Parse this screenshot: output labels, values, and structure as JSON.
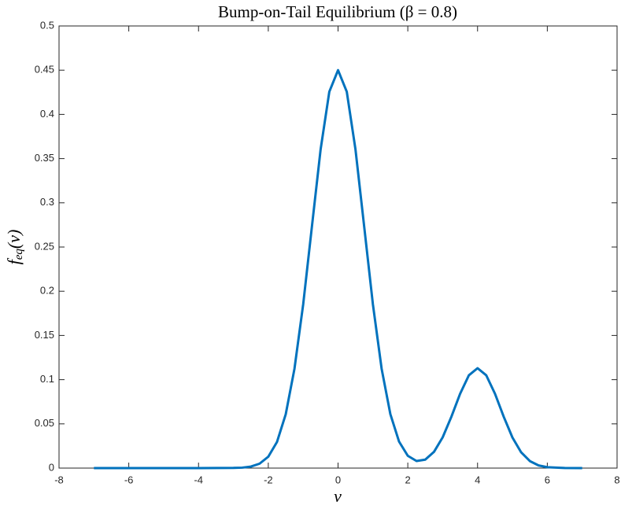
{
  "chart_data": {
    "type": "line",
    "title": "Bump-on-Tail Equilibrium (β = 0.8)",
    "xlabel": "v",
    "ylabel": {
      "base": "f",
      "sub": "eq",
      "arg": "(v)"
    },
    "x": [
      -7,
      -6,
      -5,
      -4,
      -3,
      -2.75,
      -2.5,
      -2.25,
      -2,
      -1.75,
      -1.5,
      -1.25,
      -1,
      -0.75,
      -0.5,
      -0.25,
      0,
      0.25,
      0.5,
      0.75,
      1,
      1.25,
      1.5,
      1.75,
      2,
      2.25,
      2.5,
      2.75,
      3,
      3.25,
      3.5,
      3.75,
      4,
      4.25,
      4.5,
      4.75,
      5,
      5.25,
      5.5,
      5.75,
      6,
      6.5,
      7
    ],
    "series": [
      {
        "color": "#0072bd",
        "values": [
          0,
          0,
          0,
          0,
          0.0002,
          0.0005,
          0.0017,
          0.005,
          0.0129,
          0.0296,
          0.0609,
          0.1122,
          0.185,
          0.2729,
          0.3603,
          0.4257,
          0.45,
          0.4257,
          0.3603,
          0.2729,
          0.185,
          0.1122,
          0.061,
          0.0299,
          0.0139,
          0.008,
          0.0096,
          0.0183,
          0.0348,
          0.0581,
          0.0841,
          0.1049,
          0.113,
          0.1049,
          0.0841,
          0.0581,
          0.0346,
          0.0178,
          0.0079,
          0.003,
          0.001,
          0.0001,
          0
        ]
      }
    ],
    "xlim": [
      -8,
      8
    ],
    "xticks": [
      -8,
      -6,
      -4,
      -2,
      0,
      2,
      4,
      6,
      8
    ],
    "ylim": [
      0,
      0.5
    ],
    "yticks": [
      0,
      0.05,
      0.1,
      0.15,
      0.2,
      0.25,
      0.3,
      0.35,
      0.4,
      0.45,
      0.5
    ]
  }
}
